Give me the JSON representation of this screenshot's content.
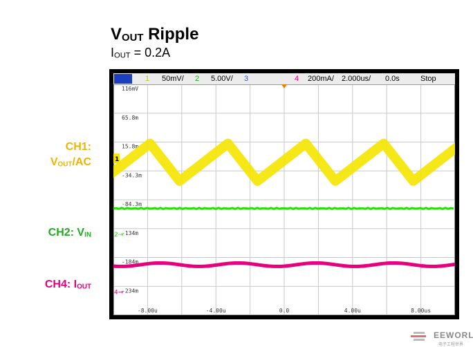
{
  "header": {
    "title_main": "V",
    "title_sub": "OUT",
    "title_rest": " Ripple",
    "subtitle_main": "I",
    "subtitle_sub": "OUT",
    "subtitle_rest": " = 0.2A"
  },
  "labels": {
    "ch1_line1": "CH1:",
    "ch1_main": "V",
    "ch1_sub": "OUT",
    "ch1_rest": "/AC",
    "ch2_main": "CH2: V",
    "ch2_sub": "IN",
    "ch4_main": "CH4: I",
    "ch4_sub": "OUT"
  },
  "status_bar": {
    "ch1_num": "1",
    "ch1_scale": "50mV/",
    "ch2_num": "2",
    "ch2_scale": "5.00V/",
    "ch3_num": "3",
    "ch4_num": "4",
    "ch4_scale": "200mA/",
    "timebase": "2.000us/",
    "delay": "0.0s",
    "state": "Stop"
  },
  "scope": {
    "y_ticks": [
      "116mV",
      "65.8m",
      "15.8m",
      "-34.3m",
      "-84.3m",
      "-134m",
      "-184m",
      "-234m"
    ],
    "x_ticks": [
      "-8.00u",
      "-4.00u",
      "0.0",
      "4.00u",
      "8.00us"
    ],
    "markers": [
      "1",
      "2",
      "4"
    ],
    "colors": {
      "ch1": "#f5e400",
      "ch2": "#22e000",
      "ch4": "#e6007e",
      "grid": "#c8c8c8",
      "trigger": "#f08000"
    }
  },
  "watermark": {
    "text": "EEWORLD",
    "sub": "电子工程世界"
  }
}
